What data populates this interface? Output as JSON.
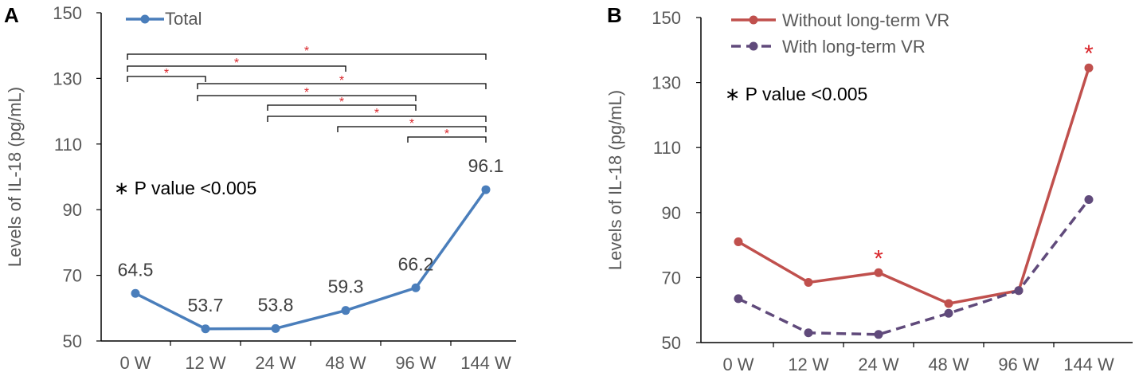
{
  "chart_data": [
    {
      "panel_label": "A",
      "type": "line",
      "categories": [
        "0 W",
        "12 W",
        "24 W",
        "48 W",
        "96 W",
        "144 W"
      ],
      "series": [
        {
          "name": "Total",
          "values": [
            64.5,
            53.7,
            53.8,
            59.3,
            66.2,
            96.1
          ],
          "color": "#4a7ebb",
          "dash": "solid"
        }
      ],
      "data_labels": [
        "64.5",
        "53.7",
        "53.8",
        "59.3",
        "66.2",
        "96.1"
      ],
      "ylabel": "Levels of IL-18  (pg/mL)",
      "ylim": [
        50,
        150
      ],
      "yticks": [
        "50",
        "70",
        "90",
        "110",
        "130",
        "150"
      ],
      "legend": "top-left",
      "annotation": "∗ P value  <0.005",
      "significance_brackets": [
        {
          "from": "0 W",
          "to": "144 W",
          "mark": "*"
        },
        {
          "from": "0 W",
          "to": "48 W",
          "mark": "*"
        },
        {
          "from": "0 W",
          "to": "12 W",
          "mark": "*"
        },
        {
          "from": "12 W",
          "to": "144 W",
          "mark": "*"
        },
        {
          "from": "12 W",
          "to": "96 W",
          "mark": "*"
        },
        {
          "from": "24 W",
          "to": "96 W",
          "mark": "*"
        },
        {
          "from": "24 W",
          "to": "144 W",
          "mark": "*"
        },
        {
          "from": "48 W",
          "to": "144 W",
          "mark": "*"
        },
        {
          "from": "96 W",
          "to": "144 W",
          "mark": "*"
        }
      ]
    },
    {
      "panel_label": "B",
      "type": "line",
      "categories": [
        "0 W",
        "12 W",
        "24 W",
        "48 W",
        "96 W",
        "144 W"
      ],
      "series": [
        {
          "name": "Without long-term VR",
          "values": [
            81,
            68.5,
            71.5,
            62,
            66,
            134.5
          ],
          "color": "#c0504d",
          "dash": "solid"
        },
        {
          "name": "With long-term VR",
          "values": [
            63.5,
            53,
            52.5,
            59,
            66,
            94
          ],
          "color": "#604a7b",
          "dash": "dashed"
        }
      ],
      "ylabel": "Levels of IL-18  (pg/mL)",
      "ylim": [
        50,
        150
      ],
      "yticks": [
        "50",
        "70",
        "90",
        "110",
        "130",
        "150"
      ],
      "legend": "top-left",
      "annotation": "∗ P value  <0.005",
      "significant_points": [
        {
          "category": "24 W",
          "mark": "*"
        },
        {
          "category": "144 W",
          "mark": "*"
        }
      ]
    }
  ]
}
